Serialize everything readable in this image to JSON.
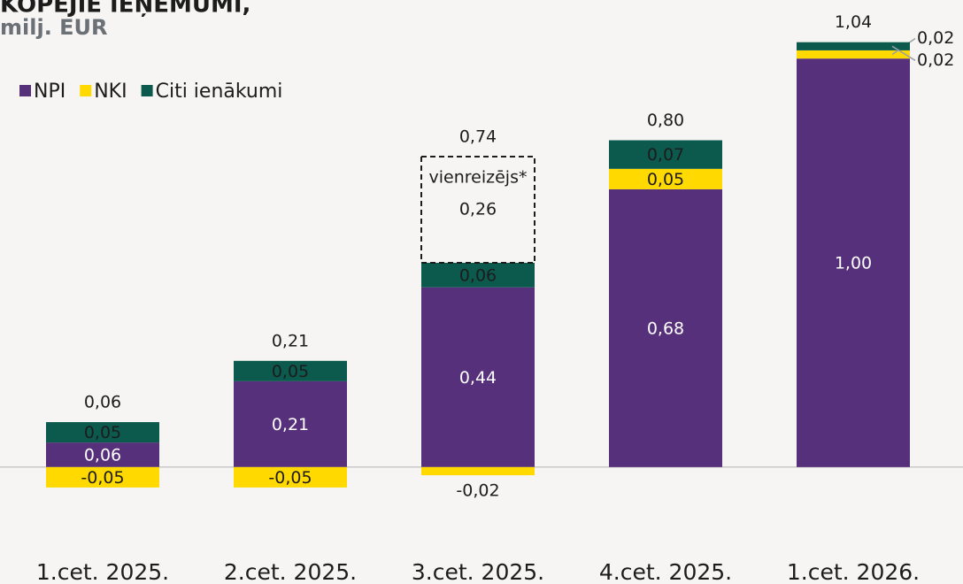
{
  "chart_data": {
    "type": "stacked_bar",
    "title": "KOPĒJIE IEŅĒMUMI,",
    "subtitle": "milj. EUR",
    "categories": [
      "1.cet. 2025.",
      "2.cet. 2025.",
      "3.cet. 2025.",
      "4.cet. 2025.",
      "1.cet. 2026."
    ],
    "series": [
      {
        "name": "NPI",
        "color": "#56307a",
        "values": [
          0.06,
          0.21,
          0.44,
          0.68,
          1.0
        ],
        "value_labels": [
          "0,06",
          "0,21",
          "0,44",
          "0,68",
          "1,00"
        ]
      },
      {
        "name": "NKI",
        "color": "#ffd900",
        "values": [
          -0.05,
          -0.05,
          -0.02,
          0.05,
          0.02
        ],
        "value_labels": [
          "-0,05",
          "-0,05",
          "-0,02",
          "0,05",
          "0,02"
        ]
      },
      {
        "name": "Citi ienākumi",
        "color": "#0c5a4e",
        "values": [
          0.05,
          0.05,
          0.06,
          0.07,
          0.02
        ],
        "value_labels": [
          "0,05",
          "0,05",
          "0,06",
          "0,07",
          "0,02"
        ]
      }
    ],
    "one_off": {
      "label": "vienreizējs*",
      "values": [
        null,
        null,
        0.26,
        null,
        null
      ],
      "value_labels": [
        null,
        null,
        "0,26",
        null,
        null
      ]
    },
    "totals": {
      "values": [
        0.06,
        0.21,
        0.74,
        0.8,
        1.04
      ],
      "value_labels": [
        "0,06",
        "0,21",
        "0,74",
        "0,80",
        "1,04"
      ]
    },
    "ylim": [
      -0.1,
      1.1
    ],
    "legend": "top-left"
  }
}
